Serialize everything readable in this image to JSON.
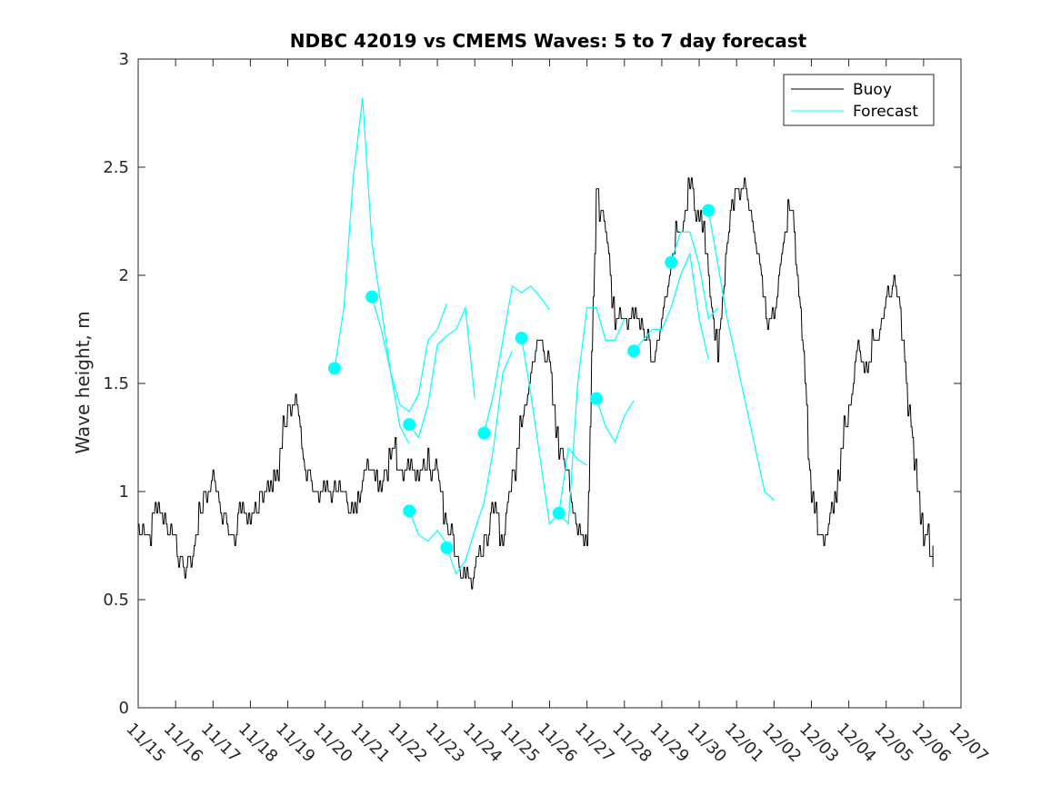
{
  "chart_data": {
    "type": "line",
    "title": "NDBC 42019 vs CMEMS Waves: 5 to 7 day forecast",
    "xlabel": "",
    "ylabel": "Wave height, m",
    "xlim": [
      0,
      22
    ],
    "ylim": [
      0,
      3
    ],
    "x_tick_labels": [
      "11/15",
      "11/16",
      "11/17",
      "11/18",
      "11/19",
      "11/20",
      "11/21",
      "11/22",
      "11/23",
      "11/24",
      "11/25",
      "11/26",
      "11/27",
      "11/28",
      "11/29",
      "11/30",
      "12/01",
      "12/02",
      "12/03",
      "12/04",
      "12/05",
      "12/06",
      "12/07"
    ],
    "y_ticks": [
      0,
      0.5,
      1,
      1.5,
      2,
      2.5,
      3
    ],
    "y_tick_labels": [
      "0",
      "0.5",
      "1",
      "1.5",
      "2",
      "2.5",
      "3"
    ],
    "legend": {
      "location": "top-right",
      "entries": [
        {
          "label": "Buoy",
          "color": "#000000"
        },
        {
          "label": "Forecast",
          "color": "#00ffff"
        }
      ]
    },
    "buoy": {
      "name": "Buoy",
      "color": "#000000",
      "x": [
        0,
        0.25,
        0.5,
        0.75,
        1.0,
        1.25,
        1.5,
        1.75,
        2.0,
        2.25,
        2.5,
        2.75,
        3.0,
        3.25,
        3.5,
        3.75,
        4.0,
        4.25,
        4.5,
        4.75,
        5.0,
        5.25,
        5.5,
        5.75,
        6.0,
        6.25,
        6.5,
        6.75,
        7.0,
        7.25,
        7.5,
        7.75,
        8.0,
        8.25,
        8.5,
        8.75,
        9.0,
        9.25,
        9.5,
        9.75,
        10.0,
        10.25,
        10.5,
        10.75,
        11.0,
        11.25,
        11.5,
        11.75,
        12.0,
        12.25,
        12.5,
        12.75,
        13.0,
        13.25,
        13.5,
        13.75,
        14.0,
        14.25,
        14.5,
        14.75,
        15.0,
        15.25,
        15.5,
        15.75,
        16.0,
        16.25,
        16.5,
        16.75,
        17.0,
        17.25,
        17.5,
        17.75,
        18.0,
        18.25,
        18.5,
        18.75,
        19.0,
        19.25,
        19.5,
        19.75,
        20.0,
        20.25,
        20.5,
        20.75,
        21.0,
        21.25
      ],
      "values": [
        0.85,
        0.8,
        0.9,
        0.85,
        0.75,
        0.62,
        0.75,
        0.95,
        1.05,
        0.9,
        0.75,
        0.9,
        0.85,
        0.95,
        1.0,
        1.1,
        1.4,
        1.35,
        1.1,
        0.95,
        0.95,
        1.05,
        1.0,
        0.85,
        1.05,
        1.1,
        1.0,
        1.2,
        1.1,
        1.05,
        1.1,
        1.15,
        1.05,
        0.85,
        0.7,
        0.55,
        0.65,
        0.75,
        0.9,
        0.8,
        1.05,
        1.3,
        1.55,
        1.7,
        1.55,
        1.2,
        1.05,
        0.8,
        0.75,
        2.4,
        2.2,
        1.8,
        1.75,
        1.8,
        1.75,
        1.6,
        1.75,
        2.1,
        2.2,
        2.4,
        2.3,
        2.0,
        1.6,
        2.2,
        2.4,
        2.35,
        2.2,
        1.85,
        1.75,
        2.2,
        2.3,
        1.7,
        1.0,
        0.75,
        0.85,
        1.1,
        1.4,
        1.65,
        1.6,
        1.7,
        1.85,
        2.0,
        1.6,
        1.1,
        0.8,
        0.7
      ]
    },
    "forecast_segments": [
      {
        "start": [
          5.25,
          1.57
        ],
        "x": [
          5.25,
          5.5,
          5.75,
          6.0,
          6.25,
          6.5,
          6.75,
          7.0,
          7.25
        ],
        "values": [
          1.57,
          1.85,
          2.45,
          2.82,
          2.15,
          1.85,
          1.55,
          1.3,
          1.22
        ]
      },
      {
        "start": [
          6.25,
          1.9
        ],
        "x": [
          6.25,
          6.5,
          6.75,
          7.0,
          7.25,
          7.5,
          7.75,
          8.0,
          8.25
        ],
        "values": [
          1.9,
          1.75,
          1.55,
          1.4,
          1.37,
          1.45,
          1.7,
          1.75,
          1.87
        ]
      },
      {
        "start": [
          7.25,
          1.31
        ],
        "x": [
          7.25,
          7.5,
          7.75,
          8.0,
          8.25,
          8.5,
          8.75,
          9.0
        ],
        "values": [
          1.31,
          1.25,
          1.4,
          1.68,
          1.72,
          1.75,
          1.85,
          1.43
        ]
      },
      {
        "start": [
          7.25,
          0.91
        ],
        "x": [
          7.25,
          7.5,
          7.75,
          8.0,
          8.25
        ],
        "values": [
          0.91,
          0.8,
          0.77,
          0.82,
          0.76
        ]
      },
      {
        "start": [
          8.25,
          0.74
        ],
        "x": [
          8.25,
          8.5,
          8.75,
          9.0,
          9.25,
          9.5,
          9.75,
          10.0
        ],
        "values": [
          0.74,
          0.62,
          0.68,
          0.82,
          0.95,
          1.2,
          1.55,
          1.65
        ]
      },
      {
        "start": [
          9.25,
          1.27
        ],
        "x": [
          9.25,
          9.5,
          9.75,
          10.0,
          10.25,
          10.5,
          10.75,
          11.0
        ],
        "values": [
          1.27,
          1.45,
          1.7,
          1.95,
          1.92,
          1.95,
          1.9,
          1.84
        ]
      },
      {
        "start": [
          10.25,
          1.71
        ],
        "x": [
          10.25,
          10.5,
          10.75,
          11.0,
          11.25,
          11.5,
          11.75,
          12.0
        ],
        "values": [
          1.71,
          1.45,
          1.15,
          0.85,
          0.9,
          1.2,
          1.15,
          1.12
        ]
      },
      {
        "start": [
          11.25,
          0.9
        ],
        "x": [
          11.25,
          11.5,
          11.75,
          12.0,
          12.25,
          12.5,
          12.75,
          13.0
        ],
        "values": [
          0.9,
          0.85,
          1.5,
          1.85,
          1.85,
          1.7,
          1.7,
          1.8
        ]
      },
      {
        "start": [
          12.25,
          1.43
        ],
        "x": [
          12.25,
          12.5,
          12.75,
          13.0,
          13.25
        ],
        "values": [
          1.43,
          1.3,
          1.23,
          1.35,
          1.42
        ]
      },
      {
        "start": [
          13.25,
          1.65
        ],
        "x": [
          13.25,
          13.5,
          13.75,
          14.0,
          14.25,
          14.5,
          14.75,
          15.0,
          15.25
        ],
        "values": [
          1.65,
          1.7,
          1.75,
          1.75,
          1.85,
          2.0,
          2.1,
          1.8,
          1.61
        ]
      },
      {
        "start": [
          14.25,
          2.06
        ],
        "x": [
          14.25,
          14.5,
          14.75,
          15.0,
          15.25,
          15.5
        ],
        "values": [
          2.06,
          2.2,
          2.2,
          2.05,
          1.8,
          1.85
        ]
      },
      {
        "start": [
          15.25,
          2.3
        ],
        "x": [
          15.25,
          15.5,
          15.75,
          16.0,
          16.25,
          16.5,
          16.75,
          17.0
        ],
        "values": [
          2.3,
          2.05,
          1.8,
          1.6,
          1.4,
          1.2,
          1.0,
          0.96
        ]
      }
    ]
  }
}
